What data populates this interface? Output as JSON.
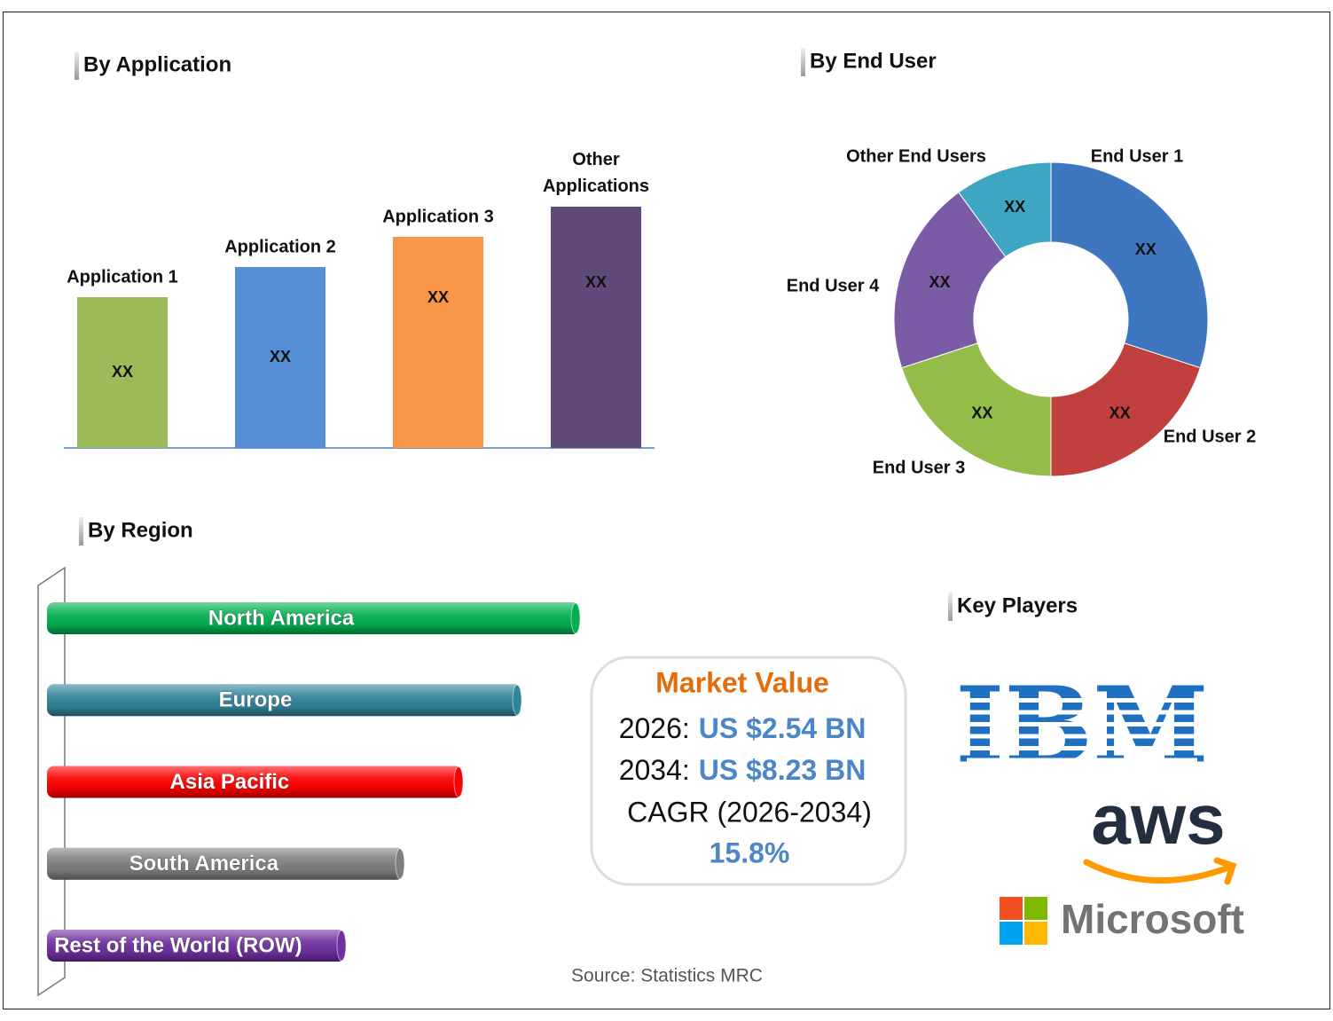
{
  "by_application": {
    "title": "By Application",
    "type": "bar",
    "categories": [
      "Application 1",
      "Application 2",
      "Application 3",
      "Other Applications"
    ],
    "values": [
      50,
      60,
      70,
      80
    ],
    "value_labels": [
      "XX",
      "XX",
      "XX",
      "XX"
    ],
    "colors": [
      "#9bbb59",
      "#558ed5",
      "#f79646",
      "#604a7b"
    ]
  },
  "by_end_user": {
    "title": "By End User",
    "type": "donut",
    "categories": [
      "End User 1",
      "End User 2",
      "End User 3",
      "End User 4",
      "Other End Users"
    ],
    "values": [
      30,
      20,
      20,
      20,
      10
    ],
    "value_labels": [
      "XX",
      "XX",
      "XX",
      "XX",
      "XX"
    ],
    "colors": [
      "#3f76c0",
      "#c0403d",
      "#93bd48",
      "#7a5ca6",
      "#3ea6c3"
    ]
  },
  "by_region": {
    "title": "By Region",
    "type": "bar",
    "categories": [
      "North America",
      "Europe",
      "Asia Pacific",
      "South America",
      "Rest of the World (ROW)"
    ],
    "values": [
      100,
      89,
      78,
      67,
      56
    ],
    "colors": [
      "#00b050",
      "#31849b",
      "#ff0000",
      "#7f7f7f",
      "#7030a0"
    ]
  },
  "market_value": {
    "title": "Market Value",
    "rows": [
      {
        "label": "2026:",
        "value": "US $2.54 BN"
      },
      {
        "label": "2034:",
        "value": "US $8.23 BN"
      }
    ],
    "cagr_label": "CAGR (2026-2034)",
    "cagr": "15.8%"
  },
  "key_players": {
    "title": "Key Players",
    "logos": [
      "IBM",
      "aws",
      "Microsoft"
    ]
  },
  "source": "Source: Statistics MRC"
}
